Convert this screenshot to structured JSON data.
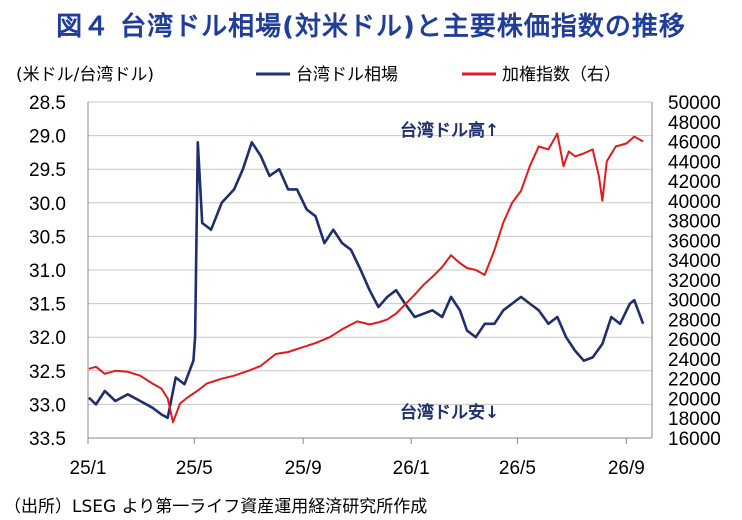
{
  "title": "図４ 台湾ドル相場(対米ドル)と主要株価指数の推移",
  "source_note": "（出所）LSEG より第一ライフ資産運用経済研究所作成",
  "chart_data": {
    "type": "line",
    "left_axis_label": "(米ドル/台湾ドル)",
    "x_ticks": [
      "25/1",
      "25/5",
      "25/9",
      "26/1",
      "26/5",
      "26/9"
    ],
    "left_axis": {
      "min": 28.5,
      "max": 33.5,
      "inverted": true,
      "ticks": [
        "28.5",
        "29.0",
        "29.5",
        "30.0",
        "30.5",
        "31.0",
        "31.5",
        "32.0",
        "32.5",
        "33.0",
        "33.5"
      ]
    },
    "right_axis": {
      "min": 16000,
      "max": 50000,
      "ticks": [
        "50000",
        "48000",
        "46000",
        "44000",
        "42000",
        "40000",
        "38000",
        "36000",
        "34000",
        "32000",
        "30000",
        "28000",
        "26000",
        "24000",
        "22000",
        "20000",
        "18000",
        "16000"
      ]
    },
    "grid": true,
    "legend_position": "top",
    "annotations": {
      "up": "台湾ドル高↑",
      "down": "台湾ドル安↓"
    },
    "series": [
      {
        "name": "台湾ドル相場",
        "axis": "left",
        "color": "#1f2f6e",
        "x": [
          "2025-01-02",
          "2025-01-10",
          "2025-01-20",
          "2025-02-01",
          "2025-02-15",
          "2025-03-01",
          "2025-03-15",
          "2025-03-25",
          "2025-04-01",
          "2025-04-10",
          "2025-04-20",
          "2025-04-30",
          "2025-05-02",
          "2025-05-05",
          "2025-05-10",
          "2025-05-20",
          "2025-06-01",
          "2025-06-15",
          "2025-06-25",
          "2025-07-05",
          "2025-07-15",
          "2025-07-25",
          "2025-08-05",
          "2025-08-15",
          "2025-08-25",
          "2025-09-05",
          "2025-09-15",
          "2025-09-25",
          "2025-10-05",
          "2025-10-15",
          "2025-10-25",
          "2025-11-05",
          "2025-11-15",
          "2025-11-25",
          "2025-12-05",
          "2025-12-15",
          "2025-12-25",
          "2026-01-05",
          "2026-01-15",
          "2026-01-25",
          "2026-02-05",
          "2026-02-15",
          "2026-02-25",
          "2026-03-05",
          "2026-03-15",
          "2026-03-25",
          "2026-04-05",
          "2026-04-15",
          "2026-04-25",
          "2026-05-05",
          "2026-05-15",
          "2026-05-25",
          "2026-06-05",
          "2026-06-15",
          "2026-06-25",
          "2026-07-05",
          "2026-07-15",
          "2026-07-25",
          "2026-08-05",
          "2026-08-15",
          "2026-08-25",
          "2026-09-05",
          "2026-09-10",
          "2026-09-20"
        ],
        "values": [
          32.9,
          33.0,
          32.8,
          32.95,
          32.85,
          32.95,
          33.05,
          33.15,
          33.2,
          32.6,
          32.7,
          32.35,
          32.0,
          29.1,
          30.3,
          30.4,
          30.0,
          29.8,
          29.5,
          29.1,
          29.3,
          29.6,
          29.5,
          29.8,
          29.8,
          30.1,
          30.2,
          30.6,
          30.4,
          30.6,
          30.7,
          31.0,
          31.3,
          31.55,
          31.4,
          31.3,
          31.5,
          31.7,
          31.65,
          31.6,
          31.7,
          31.4,
          31.6,
          31.9,
          32.0,
          31.8,
          31.8,
          31.6,
          31.5,
          31.4,
          31.5,
          31.6,
          31.8,
          31.7,
          32.0,
          32.2,
          32.35,
          32.3,
          32.1,
          31.7,
          31.8,
          31.5,
          31.45,
          31.8
        ]
      },
      {
        "name": "加権指数（右）",
        "axis": "right",
        "color": "#e11b1b",
        "x": [
          "2025-01-02",
          "2025-01-10",
          "2025-01-20",
          "2025-02-01",
          "2025-02-15",
          "2025-03-01",
          "2025-03-15",
          "2025-03-25",
          "2025-04-01",
          "2025-04-07",
          "2025-04-15",
          "2025-04-25",
          "2025-05-05",
          "2025-05-15",
          "2025-06-01",
          "2025-06-15",
          "2025-07-01",
          "2025-07-15",
          "2025-08-01",
          "2025-08-15",
          "2025-09-01",
          "2025-09-15",
          "2025-10-01",
          "2025-10-15",
          "2025-11-01",
          "2025-11-15",
          "2025-11-25",
          "2025-12-05",
          "2025-12-15",
          "2025-12-25",
          "2026-01-05",
          "2026-01-15",
          "2026-01-25",
          "2026-02-05",
          "2026-02-15",
          "2026-02-25",
          "2026-03-05",
          "2026-03-15",
          "2026-03-25",
          "2026-04-05",
          "2026-04-15",
          "2026-04-25",
          "2026-05-05",
          "2026-05-15",
          "2026-05-25",
          "2026-06-05",
          "2026-06-15",
          "2026-06-22",
          "2026-06-28",
          "2026-07-05",
          "2026-07-15",
          "2026-07-25",
          "2026-08-01",
          "2026-08-05",
          "2026-08-10",
          "2026-08-20",
          "2026-09-01",
          "2026-09-10",
          "2026-09-20"
        ],
        "values": [
          23000,
          23200,
          22500,
          22800,
          22700,
          22300,
          21500,
          21000,
          20000,
          17600,
          19500,
          20200,
          20800,
          21500,
          22000,
          22300,
          22800,
          23300,
          24500,
          24700,
          25200,
          25600,
          26200,
          27000,
          27800,
          27500,
          27700,
          28000,
          28600,
          29500,
          30500,
          31500,
          32300,
          33300,
          34500,
          33700,
          33200,
          33000,
          32500,
          35000,
          37800,
          39800,
          41000,
          43500,
          45500,
          45200,
          46800,
          43500,
          45000,
          44500,
          44800,
          45200,
          42500,
          40000,
          44000,
          45500,
          45800,
          46500,
          46000
        ]
      }
    ]
  }
}
